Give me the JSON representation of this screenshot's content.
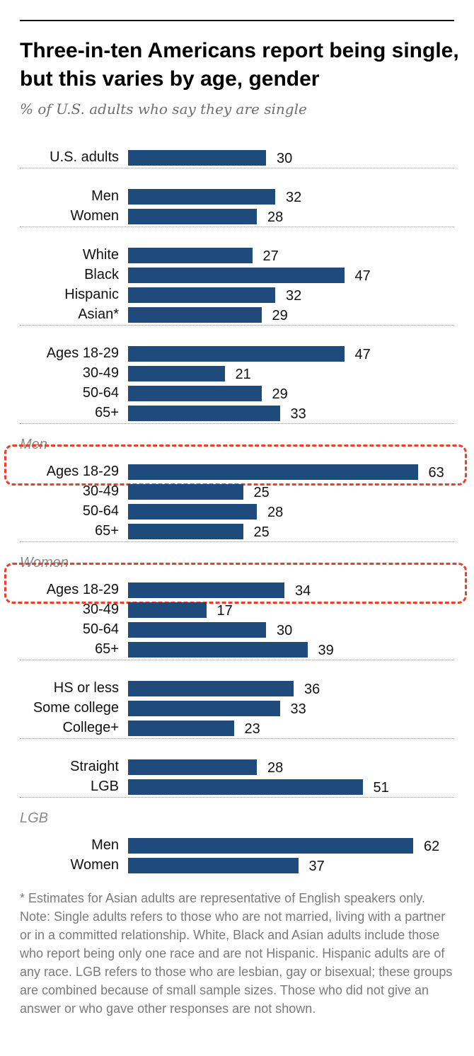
{
  "title": "Three-in-ten Americans report being single, but this varies by age, gender",
  "subtitle": "% of U.S. adults who say they are single",
  "colors": {
    "bar": "#1f4a7c",
    "highlight": "#e8402a",
    "header": "#8a8a8a"
  },
  "chart_data": {
    "type": "bar",
    "orientation": "horizontal",
    "xlim": [
      0,
      70
    ],
    "grid": false,
    "groups": [
      {
        "header": "",
        "categories": [
          "U.S. adults"
        ],
        "values": [
          30
        ]
      },
      {
        "header": "",
        "categories": [
          "Men",
          "Women"
        ],
        "values": [
          32,
          28
        ]
      },
      {
        "header": "",
        "categories": [
          "White",
          "Black",
          "Hispanic",
          "Asian*"
        ],
        "values": [
          27,
          47,
          32,
          29
        ]
      },
      {
        "header": "",
        "categories": [
          "Ages 18-29",
          "30-49",
          "50-64",
          "65+"
        ],
        "values": [
          47,
          21,
          29,
          33
        ]
      },
      {
        "header": "Men",
        "categories": [
          "Ages 18-29",
          "30-49",
          "50-64",
          "65+"
        ],
        "values": [
          63,
          25,
          28,
          25
        ],
        "highlight_index": 0
      },
      {
        "header": "Women",
        "categories": [
          "Ages 18-29",
          "30-49",
          "50-64",
          "65+"
        ],
        "values": [
          34,
          17,
          30,
          39
        ],
        "highlight_index": 0
      },
      {
        "header": "",
        "categories": [
          "HS or less",
          "Some college",
          "College+"
        ],
        "values": [
          36,
          33,
          23
        ]
      },
      {
        "header": "",
        "categories": [
          "Straight",
          "LGB"
        ],
        "values": [
          28,
          51
        ]
      },
      {
        "header": "LGB",
        "categories": [
          "Men",
          "Women"
        ],
        "values": [
          62,
          37
        ]
      }
    ]
  },
  "notes": {
    "footnote": "* Estimates for Asian adults are representative of English speakers only.",
    "note": "Note: Single adults refers to those who are not married, living with a partner or in a committed relationship. White, Black and Asian adults include those who report being only one race and are not Hispanic. Hispanic adults are of any race. LGB refers to those who are lesbian, gay or bisexual; these groups are combined because of small sample sizes. Those who did not give an answer or who gave other responses are not shown."
  }
}
